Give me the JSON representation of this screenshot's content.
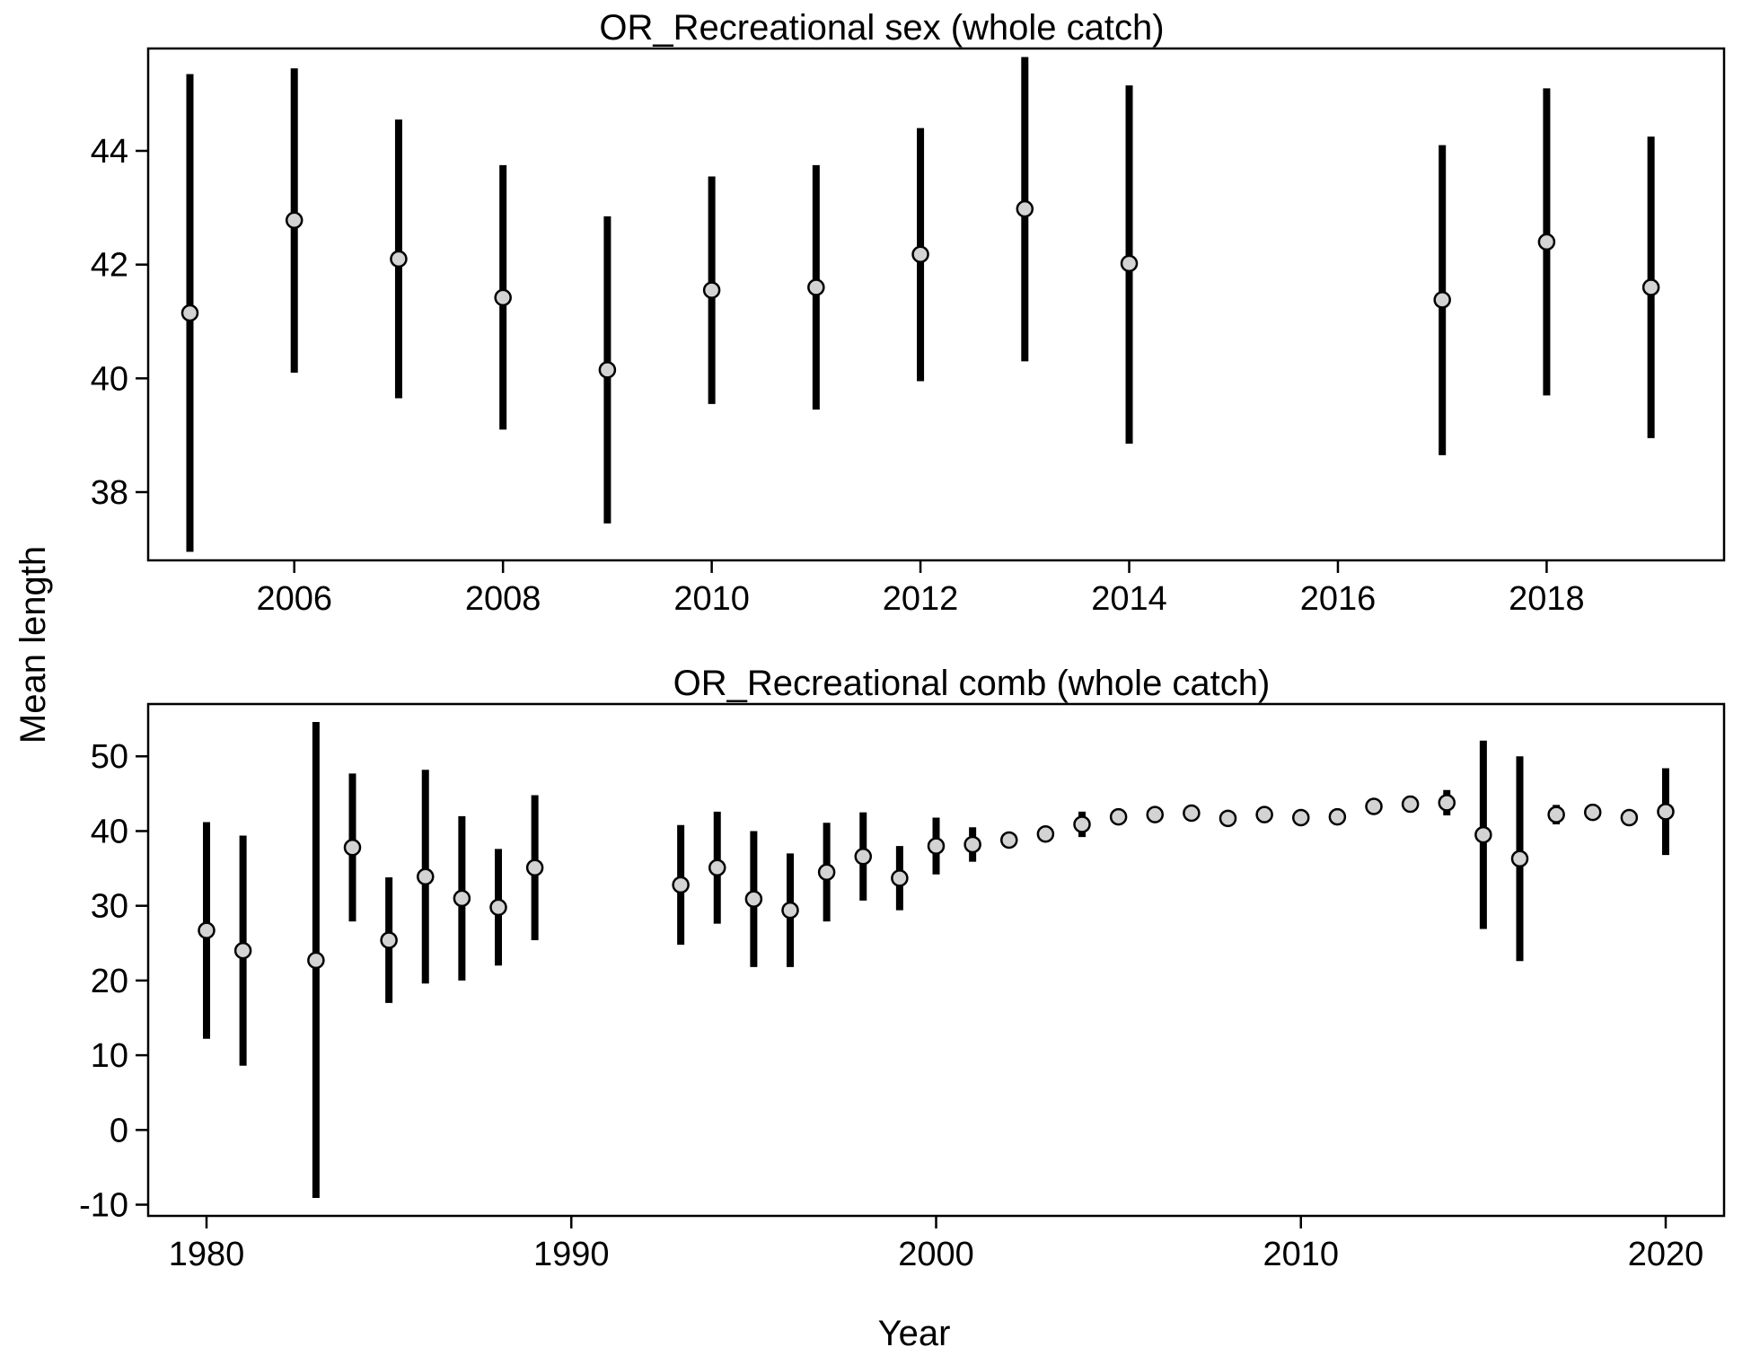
{
  "figure": {
    "ylabel": "Mean length",
    "xlabel": "Year",
    "colors": {
      "point_fill": "#d3d3d3",
      "line": "#000000",
      "background": "#ffffff"
    }
  },
  "chart_data": [
    {
      "type": "scatter",
      "title": "OR_Recreational sex (whole catch)",
      "xlabel": "",
      "ylabel": "Mean length",
      "xlim": [
        2004.6,
        2019.7
      ],
      "ylim": [
        36.8,
        45.8
      ],
      "x_ticks": [
        2006,
        2008,
        2010,
        2012,
        2014,
        2016,
        2018
      ],
      "x_tick_labels": [
        "2006",
        "2008",
        "2010",
        "2012",
        "2014",
        "2016",
        "2018"
      ],
      "y_ticks": [
        38,
        40,
        42,
        44
      ],
      "y_tick_labels": [
        "38",
        "40",
        "42",
        "44"
      ],
      "grid": false,
      "legend": "none",
      "points": [
        {
          "x": 2005,
          "y": 41.15,
          "lo": 36.95,
          "hi": 45.35
        },
        {
          "x": 2006,
          "y": 42.78,
          "lo": 40.1,
          "hi": 45.45
        },
        {
          "x": 2007,
          "y": 42.1,
          "lo": 39.65,
          "hi": 44.55
        },
        {
          "x": 2008,
          "y": 41.42,
          "lo": 39.1,
          "hi": 43.75
        },
        {
          "x": 2009,
          "y": 40.15,
          "lo": 37.45,
          "hi": 42.85
        },
        {
          "x": 2010,
          "y": 41.55,
          "lo": 39.55,
          "hi": 43.55
        },
        {
          "x": 2011,
          "y": 41.6,
          "lo": 39.45,
          "hi": 43.75
        },
        {
          "x": 2012,
          "y": 42.18,
          "lo": 39.95,
          "hi": 44.4
        },
        {
          "x": 2013,
          "y": 42.98,
          "lo": 40.3,
          "hi": 45.65
        },
        {
          "x": 2014,
          "y": 42.02,
          "lo": 38.85,
          "hi": 45.15
        },
        {
          "x": 2017,
          "y": 41.38,
          "lo": 38.65,
          "hi": 44.1
        },
        {
          "x": 2018,
          "y": 42.4,
          "lo": 39.7,
          "hi": 45.1
        },
        {
          "x": 2019,
          "y": 41.6,
          "lo": 38.95,
          "hi": 44.25
        }
      ]
    },
    {
      "type": "scatter",
      "title": "OR_Recreational comb (whole catch)",
      "xlabel": "Year",
      "ylabel": "Mean length",
      "xlim": [
        1978.4,
        2021.6
      ],
      "ylim": [
        -11.5,
        57
      ],
      "x_ticks": [
        1980,
        1990,
        2000,
        2010,
        2020
      ],
      "x_tick_labels": [
        "1980",
        "1990",
        "2000",
        "2010",
        "2020"
      ],
      "y_ticks": [
        -10,
        0,
        10,
        20,
        30,
        40,
        50
      ],
      "y_tick_labels": [
        "-10",
        "0",
        "10",
        "20",
        "30",
        "40",
        "50"
      ],
      "grid": false,
      "legend": "none",
      "points": [
        {
          "x": 1980,
          "y": 26.7,
          "lo": 12.2,
          "hi": 41.2
        },
        {
          "x": 1981,
          "y": 24.0,
          "lo": 8.6,
          "hi": 39.4
        },
        {
          "x": 1983,
          "y": 22.7,
          "lo": -9.1,
          "hi": 54.6
        },
        {
          "x": 1984,
          "y": 37.8,
          "lo": 27.9,
          "hi": 47.7
        },
        {
          "x": 1985,
          "y": 25.4,
          "lo": 17.0,
          "hi": 33.8
        },
        {
          "x": 1986,
          "y": 33.9,
          "lo": 19.6,
          "hi": 48.2
        },
        {
          "x": 1987,
          "y": 31.0,
          "lo": 20.0,
          "hi": 42.0
        },
        {
          "x": 1988,
          "y": 29.8,
          "lo": 22.0,
          "hi": 37.6
        },
        {
          "x": 1989,
          "y": 35.1,
          "lo": 25.4,
          "hi": 44.8
        },
        {
          "x": 1993,
          "y": 32.8,
          "lo": 24.8,
          "hi": 40.8
        },
        {
          "x": 1994,
          "y": 35.1,
          "lo": 27.6,
          "hi": 42.6
        },
        {
          "x": 1995,
          "y": 30.9,
          "lo": 21.8,
          "hi": 40.0
        },
        {
          "x": 1996,
          "y": 29.4,
          "lo": 21.8,
          "hi": 37.0
        },
        {
          "x": 1997,
          "y": 34.5,
          "lo": 27.9,
          "hi": 41.1
        },
        {
          "x": 1998,
          "y": 36.6,
          "lo": 30.7,
          "hi": 42.5
        },
        {
          "x": 1999,
          "y": 33.7,
          "lo": 29.4,
          "hi": 38.0
        },
        {
          "x": 2000,
          "y": 38.0,
          "lo": 34.2,
          "hi": 41.8
        },
        {
          "x": 2001,
          "y": 38.2,
          "lo": 35.9,
          "hi": 40.5
        },
        {
          "x": 2002,
          "y": 38.8,
          "lo": 38.0,
          "hi": 39.6
        },
        {
          "x": 2003,
          "y": 39.6,
          "lo": 38.7,
          "hi": 40.5
        },
        {
          "x": 2004,
          "y": 40.9,
          "lo": 39.2,
          "hi": 42.6
        },
        {
          "x": 2005,
          "y": 41.9,
          "lo": 41.3,
          "hi": 42.5
        },
        {
          "x": 2006,
          "y": 42.2,
          "lo": 41.6,
          "hi": 42.8
        },
        {
          "x": 2007,
          "y": 42.4,
          "lo": 41.8,
          "hi": 43.0
        },
        {
          "x": 2008,
          "y": 41.7,
          "lo": 41.1,
          "hi": 42.3
        },
        {
          "x": 2009,
          "y": 42.2,
          "lo": 41.1,
          "hi": 43.3
        },
        {
          "x": 2010,
          "y": 41.8,
          "lo": 41.2,
          "hi": 42.4
        },
        {
          "x": 2011,
          "y": 41.9,
          "lo": 41.3,
          "hi": 42.5
        },
        {
          "x": 2012,
          "y": 43.3,
          "lo": 42.7,
          "hi": 43.9
        },
        {
          "x": 2013,
          "y": 43.6,
          "lo": 42.5,
          "hi": 44.7
        },
        {
          "x": 2014,
          "y": 43.8,
          "lo": 42.1,
          "hi": 45.5
        },
        {
          "x": 2015,
          "y": 39.5,
          "lo": 26.9,
          "hi": 52.1
        },
        {
          "x": 2016,
          "y": 36.3,
          "lo": 22.6,
          "hi": 50.0
        },
        {
          "x": 2017,
          "y": 42.2,
          "lo": 40.9,
          "hi": 43.5
        },
        {
          "x": 2018,
          "y": 42.5,
          "lo": 41.9,
          "hi": 43.1
        },
        {
          "x": 2019,
          "y": 41.8,
          "lo": 41.0,
          "hi": 42.6
        },
        {
          "x": 2020,
          "y": 42.6,
          "lo": 36.8,
          "hi": 48.4
        }
      ]
    }
  ]
}
